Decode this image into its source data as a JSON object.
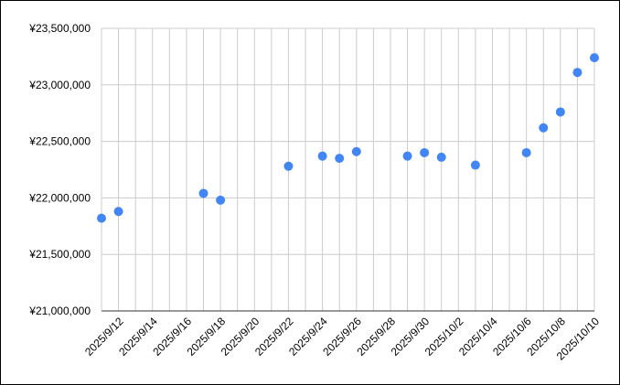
{
  "chart_data": {
    "type": "scatter",
    "title": "",
    "xlabel": "",
    "ylabel": "",
    "x_axis": {
      "type": "date",
      "range": [
        "2025/9/11",
        "2025/10/10"
      ],
      "tick_labels": [
        "2025/9/12",
        "2025/9/14",
        "2025/9/16",
        "2025/9/18",
        "2025/9/20",
        "2025/9/22",
        "2025/9/24",
        "2025/9/26",
        "2025/9/28",
        "2025/9/30",
        "2025/10/2",
        "2025/10/4",
        "2025/10/6",
        "2025/10/8",
        "2025/10/10"
      ]
    },
    "y_axis": {
      "range": [
        21000000,
        23500000
      ],
      "tick_values": [
        21000000,
        21500000,
        22000000,
        22500000,
        23000000,
        23500000
      ],
      "tick_labels": [
        "¥21,000,000",
        "¥21,500,000",
        "¥22,000,000",
        "¥22,500,000",
        "¥23,000,000",
        "¥23,500,000"
      ]
    },
    "grid": true,
    "legend": "none",
    "colors": {
      "points": "#4285f4",
      "grid": "#cccccc",
      "axis": "#333333"
    },
    "series": [
      {
        "points": [
          {
            "x": "2025/9/11",
            "y": 21820000
          },
          {
            "x": "2025/9/12",
            "y": 21880000
          },
          {
            "x": "2025/9/17",
            "y": 22040000
          },
          {
            "x": "2025/9/18",
            "y": 21980000
          },
          {
            "x": "2025/9/22",
            "y": 22280000
          },
          {
            "x": "2025/9/24",
            "y": 22370000
          },
          {
            "x": "2025/9/25",
            "y": 22350000
          },
          {
            "x": "2025/9/26",
            "y": 22410000
          },
          {
            "x": "2025/9/29",
            "y": 22370000
          },
          {
            "x": "2025/9/30",
            "y": 22400000
          },
          {
            "x": "2025/10/1",
            "y": 22360000
          },
          {
            "x": "2025/10/3",
            "y": 22290000
          },
          {
            "x": "2025/10/6",
            "y": 22400000
          },
          {
            "x": "2025/10/7",
            "y": 22620000
          },
          {
            "x": "2025/10/8",
            "y": 22760000
          },
          {
            "x": "2025/10/9",
            "y": 23110000
          },
          {
            "x": "2025/10/10",
            "y": 23240000
          }
        ]
      }
    ]
  }
}
